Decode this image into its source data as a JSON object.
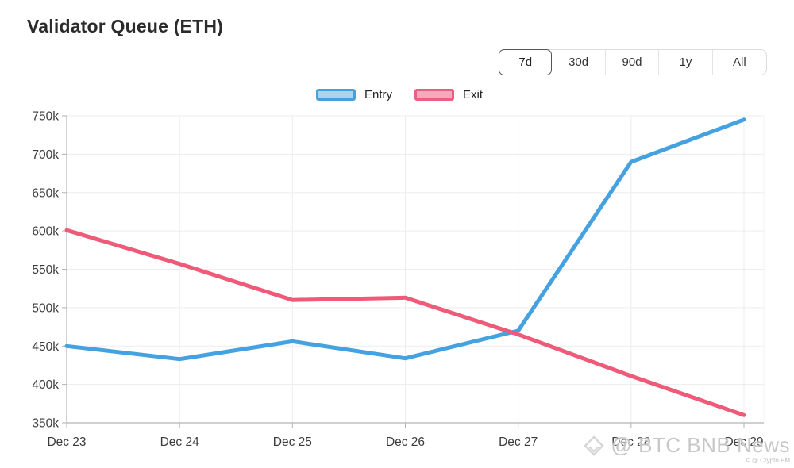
{
  "header": {
    "title": "Validator Queue (ETH)",
    "ranges": [
      {
        "label": "7d",
        "active": true
      },
      {
        "label": "30d",
        "active": false
      },
      {
        "label": "90d",
        "active": false
      },
      {
        "label": "1y",
        "active": false
      },
      {
        "label": "All",
        "active": false
      }
    ]
  },
  "legend": {
    "items": [
      {
        "label": "Entry",
        "border": "#45a1e0",
        "fill": "#abd4f1"
      },
      {
        "label": "Exit",
        "border": "#ea5f81",
        "fill": "#f3aabc"
      }
    ]
  },
  "chart_data": {
    "type": "line",
    "title": "Validator Queue (ETH)",
    "categories": [
      "Dec 23",
      "Dec 24",
      "Dec 25",
      "Dec 26",
      "Dec 27",
      "Dec 28",
      "Dec 29"
    ],
    "series": [
      {
        "name": "Entry",
        "color": "#45a1e0",
        "values_k": [
          450,
          433,
          456,
          434,
          470,
          690,
          745
        ]
      },
      {
        "name": "Exit",
        "color": "#ee5a78",
        "values_k": [
          601,
          557,
          510,
          513,
          465,
          411,
          360
        ]
      }
    ],
    "unit": "k",
    "ylim_k": [
      350,
      750
    ],
    "ytick_step_k": 50,
    "ytick_labels": [
      "750k",
      "700k",
      "650k",
      "600k",
      "550k",
      "500k",
      "450k",
      "400k",
      "350k"
    ],
    "grid": true,
    "legend_position": "top-center"
  },
  "watermark": {
    "text": "@ BTC BNB News",
    "subtext": "© @ Crypto PM",
    "icon": "diamond-logo"
  },
  "colors": {
    "grid": "#ededed",
    "axis": "#b3b3b3",
    "tick_label": "#3b3b3b"
  }
}
